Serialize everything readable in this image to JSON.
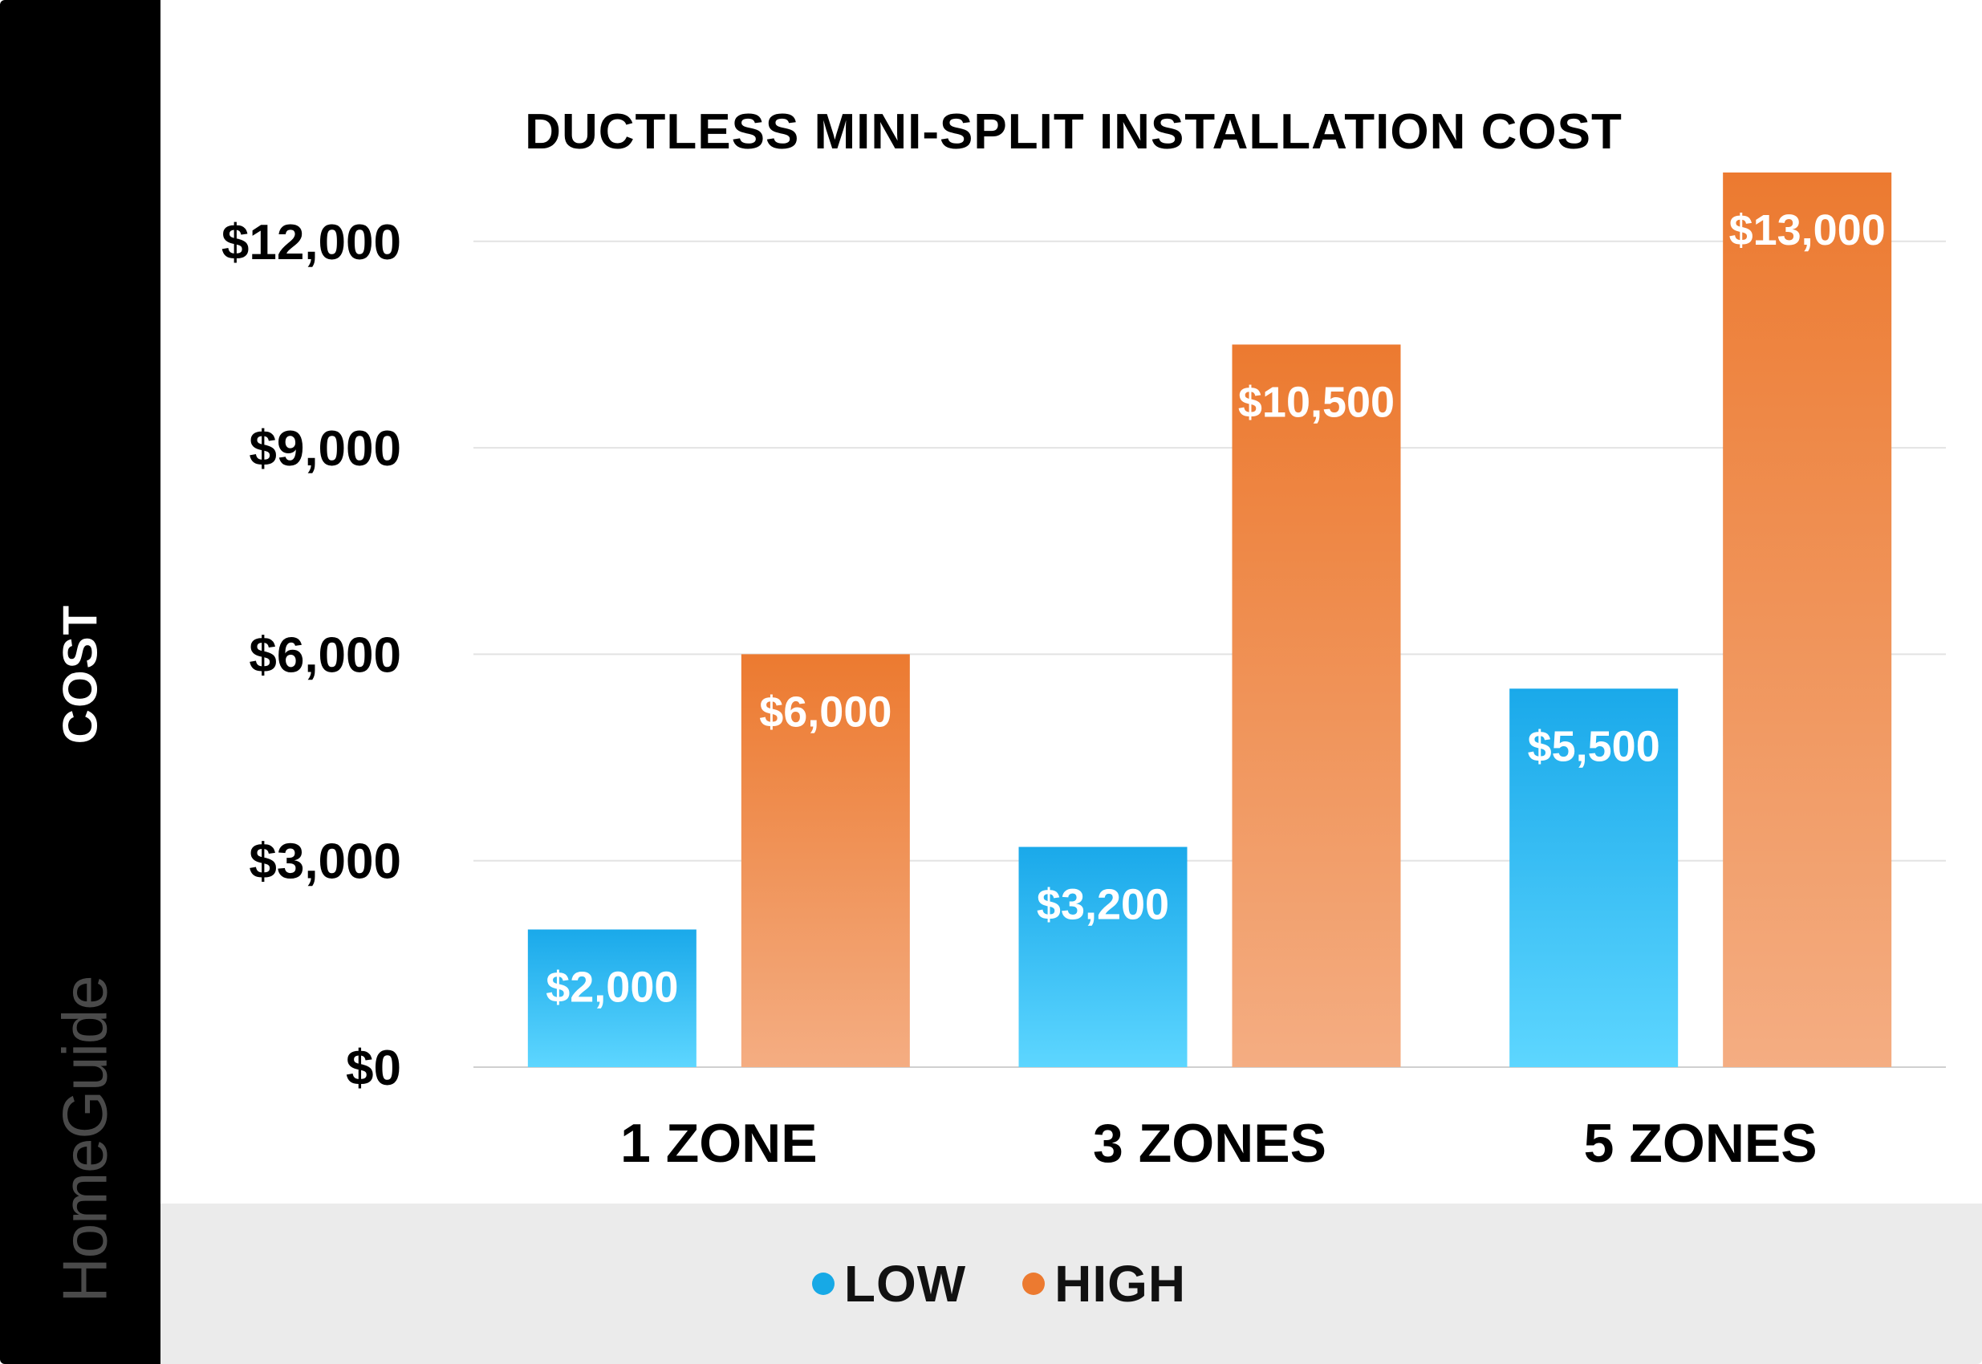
{
  "chart_data": {
    "type": "bar",
    "title": "DUCTLESS MINI-SPLIT INSTALLATION COST",
    "ylabel": "COST",
    "xlabel": "",
    "categories": [
      "1 ZONE",
      "3 ZONES",
      "5 ZONES"
    ],
    "series": [
      {
        "name": "LOW",
        "values": [
          2000,
          3200,
          5500
        ],
        "labels": [
          "$2,000",
          "$3,200",
          "$5,500"
        ],
        "color_top": "#1aa9ea",
        "color_bottom": "#5dd6ff"
      },
      {
        "name": "HIGH",
        "values": [
          6000,
          10500,
          13000
        ],
        "labels": [
          "$6,000",
          "$10,500",
          "$13,000"
        ],
        "color_top": "#ec7a30",
        "color_bottom": "#f4ad82"
      }
    ],
    "yticks": [
      0,
      3000,
      6000,
      9000,
      12000
    ],
    "ytick_labels": [
      "$0",
      "$3,000",
      "$6,000",
      "$9,000",
      "$12,000"
    ],
    "ylim": [
      0,
      13000
    ],
    "grid": true,
    "legend_position": "bottom-center"
  },
  "brand": "HomeGuide",
  "legend": {
    "low_label": "LOW",
    "high_label": "HIGH",
    "low_color": "#17a9e6",
    "high_color": "#ec7a30"
  }
}
